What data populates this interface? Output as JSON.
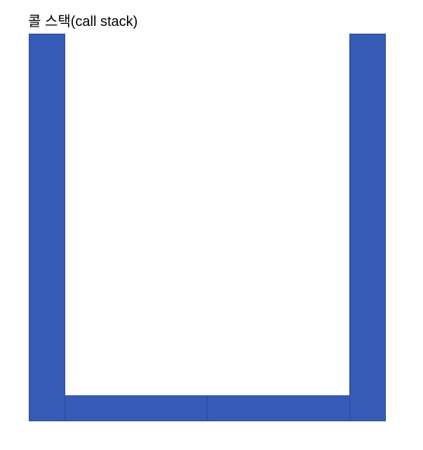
{
  "diagram": {
    "title": "콜 스택(call stack)",
    "stack_color": "#365bb7",
    "stack_border_color": "#2a4a8f"
  }
}
